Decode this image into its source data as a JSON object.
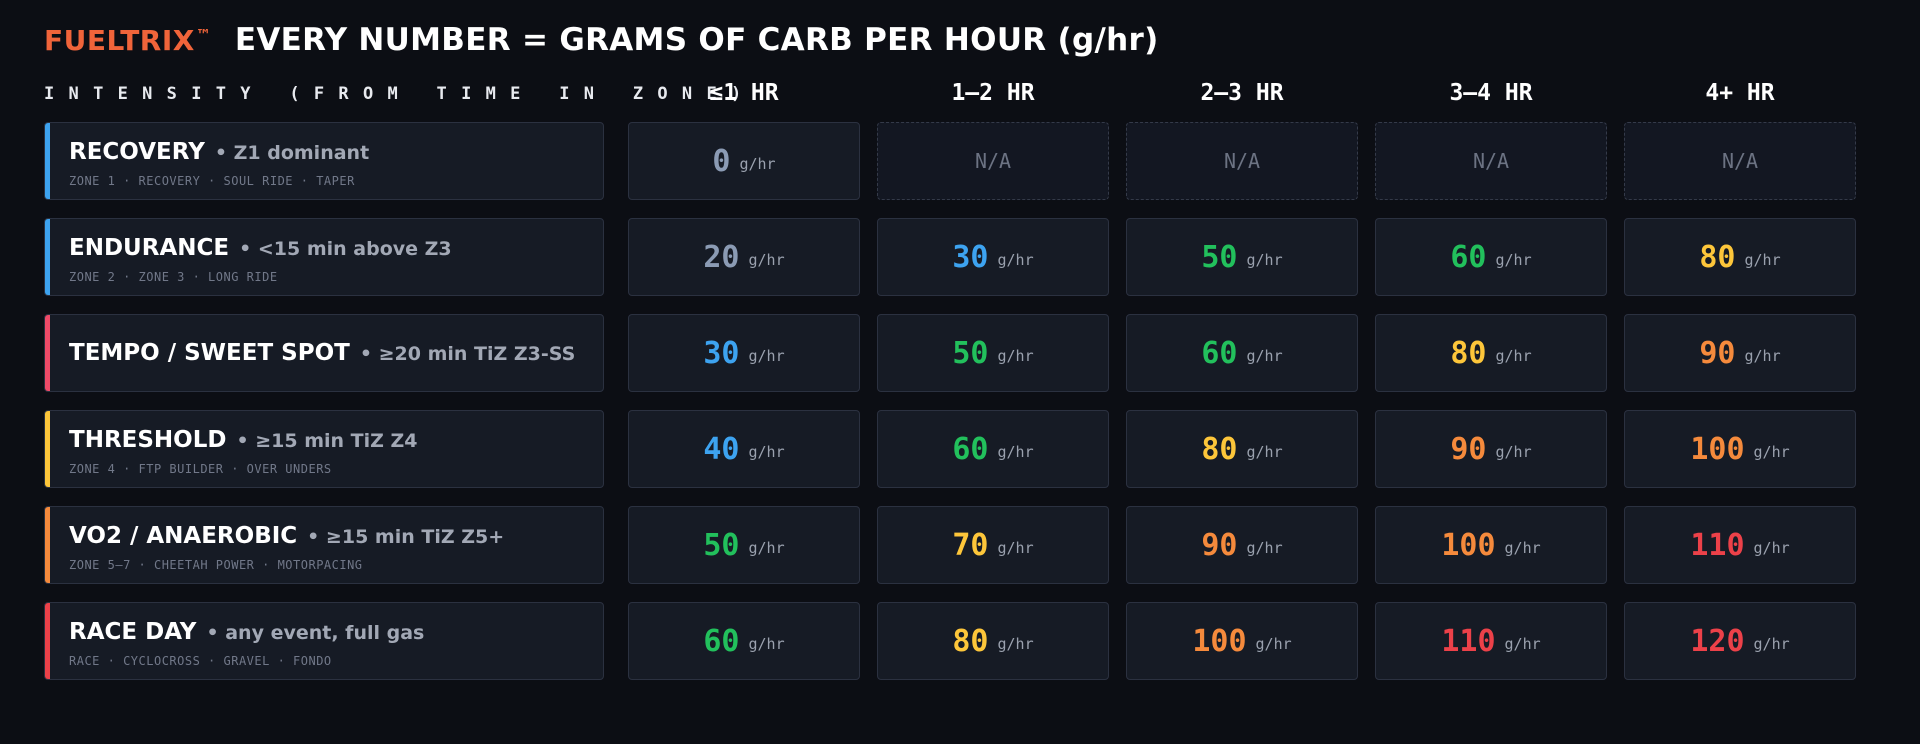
{
  "header": {
    "brand": "FUELTRIX",
    "brand_mark": "™",
    "headline": "EVERY NUMBER = GRAMS OF CARB PER HOUR (g/hr)"
  },
  "intensity_header": "INTENSITY (FROM TIME IN ZONE)",
  "duration_columns": [
    "≤1 HR",
    "1–2 HR",
    "2–3 HR",
    "3–4 HR",
    "4+ HR"
  ],
  "unit": "g/hr",
  "na_text": "N/A",
  "colors": {
    "background": "#0c0e14",
    "brand": "#f0643a",
    "slate": "#8b9bb4",
    "blue": "#3da3f0",
    "green": "#22c05c",
    "yellow": "#fdc63a",
    "orange": "#f58a3c",
    "red": "#ec4149",
    "pink": "#ef4a68"
  },
  "rows": [
    {
      "name": "RECOVERY",
      "detail": "• Z1 dominant",
      "sub": "ZONE 1 · RECOVERY · SOUL RIDE · TAPER",
      "accent": "blue",
      "cells": [
        {
          "value": "0",
          "color": "slate"
        },
        {
          "na": true
        },
        {
          "na": true
        },
        {
          "na": true
        },
        {
          "na": true
        }
      ]
    },
    {
      "name": "ENDURANCE",
      "detail": "• <15 min above Z3",
      "sub": "ZONE 2 · ZONE 3 · LONG RIDE",
      "accent": "blue",
      "cells": [
        {
          "value": "20",
          "color": "slate"
        },
        {
          "value": "30",
          "color": "blue"
        },
        {
          "value": "50",
          "color": "green"
        },
        {
          "value": "60",
          "color": "green"
        },
        {
          "value": "80",
          "color": "yellow"
        }
      ]
    },
    {
      "name": "TEMPO / SWEET SPOT",
      "detail": "• ≥20 min TiZ Z3-SS",
      "sub": "",
      "accent": "pink",
      "cells": [
        {
          "value": "30",
          "color": "blue"
        },
        {
          "value": "50",
          "color": "green"
        },
        {
          "value": "60",
          "color": "green"
        },
        {
          "value": "80",
          "color": "yellow"
        },
        {
          "value": "90",
          "color": "orange"
        }
      ]
    },
    {
      "name": "THRESHOLD",
      "detail": "• ≥15 min TiZ Z4",
      "sub": "ZONE 4 · FTP BUILDER · OVER UNDERS",
      "accent": "yellow",
      "cells": [
        {
          "value": "40",
          "color": "blue"
        },
        {
          "value": "60",
          "color": "green"
        },
        {
          "value": "80",
          "color": "yellow"
        },
        {
          "value": "90",
          "color": "orange"
        },
        {
          "value": "100",
          "color": "orange"
        }
      ]
    },
    {
      "name": "VO2 / ANAEROBIC",
      "detail": "• ≥15 min TiZ Z5+",
      "sub": "ZONE 5–7 · CHEETAH POWER · MOTORPACING",
      "accent": "orange",
      "cells": [
        {
          "value": "50",
          "color": "green"
        },
        {
          "value": "70",
          "color": "yellow"
        },
        {
          "value": "90",
          "color": "orange"
        },
        {
          "value": "100",
          "color": "orange"
        },
        {
          "value": "110",
          "color": "red"
        }
      ]
    },
    {
      "name": "RACE DAY",
      "detail": "• any event, full gas",
      "sub": "RACE · CYCLOCROSS · GRAVEL · FONDO",
      "accent": "red",
      "cells": [
        {
          "value": "60",
          "color": "green"
        },
        {
          "value": "80",
          "color": "yellow"
        },
        {
          "value": "100",
          "color": "orange"
        },
        {
          "value": "110",
          "color": "red"
        },
        {
          "value": "120",
          "color": "red"
        }
      ]
    }
  ]
}
